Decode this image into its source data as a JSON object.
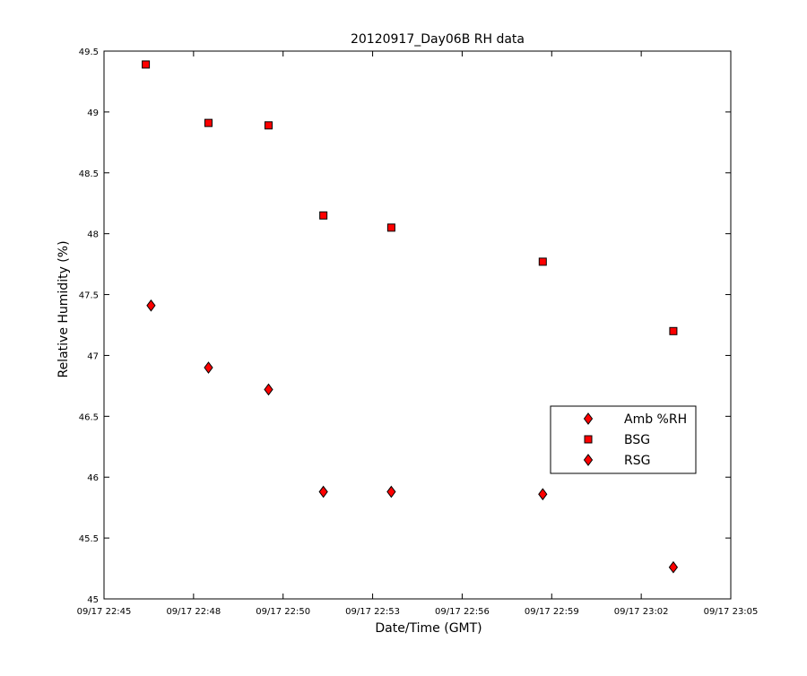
{
  "chart_data": {
    "type": "scatter",
    "title": "20120917_Day06B RH data",
    "xlabel": "Date/Time (GMT)",
    "ylabel": "Relative Humidity (%)",
    "x_ticks": [
      "09/17 22:45",
      "09/17 22:48",
      "09/17 22:50",
      "09/17 22:53",
      "09/17 22:56",
      "09/17 22:59",
      "09/17 23:02",
      "09/17 23:05"
    ],
    "y_ticks": [
      "45",
      "45.5",
      "46",
      "46.5",
      "47",
      "47.5",
      "48",
      "48.5",
      "49",
      "49.5"
    ],
    "ylim": [
      45,
      49.5
    ],
    "xlim": [
      "09/17 22:45",
      "09/17 23:05"
    ],
    "grid": false,
    "legend_position": "right",
    "series": [
      {
        "name": "Amb %RH",
        "marker": "diamond",
        "color": "#ff0000",
        "points": []
      },
      {
        "name": "BSG",
        "marker": "square",
        "color": "#ff0000",
        "points": [
          {
            "x": "09/17 22:46:20",
            "y": 49.39
          },
          {
            "x": "09/17 22:48:20",
            "y": 48.91
          },
          {
            "x": "09/17 22:50:15",
            "y": 48.89
          },
          {
            "x": "09/17 22:52:00",
            "y": 48.15
          },
          {
            "x": "09/17 22:54:10",
            "y": 48.05
          },
          {
            "x": "09/17 22:59:00",
            "y": 47.77
          },
          {
            "x": "09/17 23:03:10",
            "y": 47.2
          }
        ]
      },
      {
        "name": "RSG",
        "marker": "diamond",
        "color": "#ff0000",
        "points": [
          {
            "x": "09/17 22:46:30",
            "y": 47.41
          },
          {
            "x": "09/17 22:48:20",
            "y": 46.9
          },
          {
            "x": "09/17 22:50:15",
            "y": 46.72
          },
          {
            "x": "09/17 22:52:00",
            "y": 45.88
          },
          {
            "x": "09/17 22:54:10",
            "y": 45.88
          },
          {
            "x": "09/17 22:59:00",
            "y": 45.86
          },
          {
            "x": "09/17 23:03:10",
            "y": 45.26
          }
        ]
      }
    ]
  }
}
